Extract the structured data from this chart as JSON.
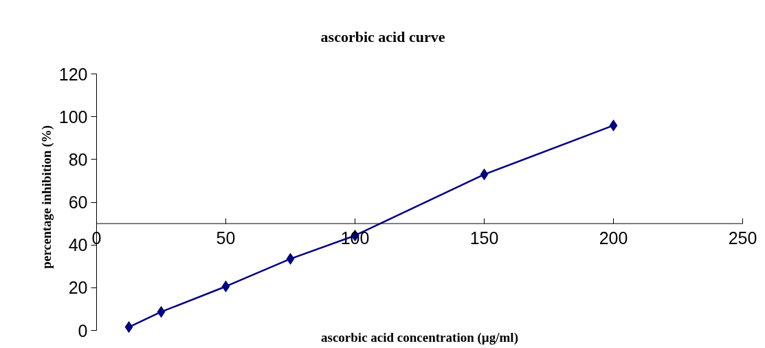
{
  "chart_data": {
    "type": "line",
    "title": "ascorbic acid curve",
    "xlabel": "ascorbic acid concentration (µg/ml)",
    "ylabel": "percentage inhibition (%)",
    "x": [
      12.5,
      25,
      50,
      75,
      100,
      150,
      200
    ],
    "series": [
      {
        "color": "#000080",
        "values": [
          1.6,
          8.7,
          20.6,
          33.5,
          44.4,
          73,
          95.9
        ]
      }
    ],
    "xlim": [
      0,
      250
    ],
    "ylim": [
      0,
      120
    ],
    "xticks": [
      0,
      50,
      100,
      150,
      200,
      250
    ],
    "yticks": [
      0,
      20,
      40,
      60,
      80,
      100,
      120
    ],
    "marker": "diamond",
    "grid": false
  }
}
